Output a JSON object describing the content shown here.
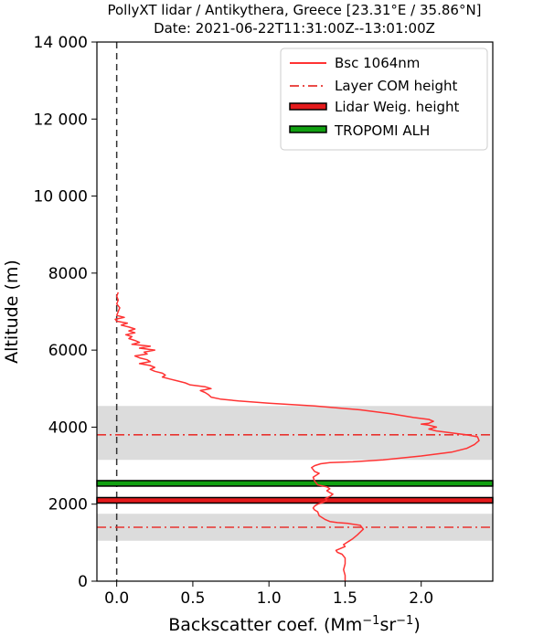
{
  "chart_data": {
    "type": "line",
    "title_line1": "PollyXT lidar / Antikythera, Greece [23.31°E / 35.86°N]",
    "title_line2": "Date: 2021-06-22T11:31:00Z--13:01:00Z",
    "xlabel_main": "Backscatter coef. (Mm",
    "xlabel_exp1": "−1",
    "xlabel_mid": "sr",
    "xlabel_exp2": "−1",
    "xlabel_end": ")",
    "ylabel": "Altitude (m)",
    "xlim": [
      -0.13,
      2.47
    ],
    "ylim": [
      0,
      14000
    ],
    "xticks": [
      0.0,
      0.5,
      1.0,
      1.5,
      2.0
    ],
    "xtick_labels": [
      "0.0",
      "0.5",
      "1.0",
      "1.5",
      "2.0"
    ],
    "yticks": [
      0,
      2000,
      4000,
      6000,
      8000,
      10000,
      12000,
      14000
    ],
    "ytick_labels": [
      "0",
      "2000",
      "4000",
      "6000",
      "8000",
      "10 000",
      "12 000",
      "14 000"
    ],
    "grid": false,
    "legend_position": "top-right",
    "legend": [
      {
        "label": "Bsc 1064nm",
        "style": "line"
      },
      {
        "label": "Layer COM height",
        "style": "dashdot"
      },
      {
        "label": "Lidar Weig. height",
        "style": "box-red"
      },
      {
        "label": "TROPOMI ALH",
        "style": "box-green"
      }
    ],
    "colors": {
      "bsc": "#ff3333",
      "com": "#e8332f",
      "lidar": "#e41a1c",
      "tropomi": "#11a011",
      "band": "#dcdcdc",
      "zero_line": "#333333"
    },
    "shaded_layers": [
      [
        3150,
        4550
      ],
      [
        1050,
        1750
      ]
    ],
    "layer_com_heights": [
      3800,
      1400
    ],
    "lidar_weighted_height": 2100,
    "tropomi_alh": 2540,
    "series": [
      {
        "name": "Bsc 1064nm",
        "points": [
          [
            1.5,
            0
          ],
          [
            1.5,
            150
          ],
          [
            1.49,
            300
          ],
          [
            1.5,
            450
          ],
          [
            1.5,
            600
          ],
          [
            1.48,
            700
          ],
          [
            1.45,
            750
          ],
          [
            1.44,
            800
          ],
          [
            1.47,
            850
          ],
          [
            1.5,
            900
          ],
          [
            1.49,
            950
          ],
          [
            1.51,
            1000
          ],
          [
            1.55,
            1100
          ],
          [
            1.58,
            1200
          ],
          [
            1.62,
            1350
          ],
          [
            1.6,
            1450
          ],
          [
            1.52,
            1500
          ],
          [
            1.45,
            1520
          ],
          [
            1.4,
            1550
          ],
          [
            1.37,
            1600
          ],
          [
            1.35,
            1650
          ],
          [
            1.33,
            1700
          ],
          [
            1.32,
            1800
          ],
          [
            1.3,
            1850
          ],
          [
            1.29,
            1900
          ],
          [
            1.3,
            1950
          ],
          [
            1.32,
            2000
          ],
          [
            1.36,
            2050
          ],
          [
            1.38,
            2100
          ],
          [
            1.37,
            2150
          ],
          [
            1.4,
            2200
          ],
          [
            1.42,
            2260
          ],
          [
            1.4,
            2300
          ],
          [
            1.38,
            2350
          ],
          [
            1.4,
            2400
          ],
          [
            1.38,
            2450
          ],
          [
            1.32,
            2500
          ],
          [
            1.3,
            2600
          ],
          [
            1.29,
            2700
          ],
          [
            1.31,
            2750
          ],
          [
            1.33,
            2800
          ],
          [
            1.3,
            2850
          ],
          [
            1.29,
            2900
          ],
          [
            1.28,
            2950
          ],
          [
            1.3,
            3000
          ],
          [
            1.34,
            3050
          ],
          [
            1.4,
            3080
          ],
          [
            1.55,
            3100
          ],
          [
            1.75,
            3150
          ],
          [
            2.0,
            3250
          ],
          [
            2.2,
            3350
          ],
          [
            2.3,
            3450
          ],
          [
            2.35,
            3550
          ],
          [
            2.38,
            3650
          ],
          [
            2.37,
            3750
          ],
          [
            2.3,
            3800
          ],
          [
            2.2,
            3850
          ],
          [
            2.1,
            3900
          ],
          [
            2.05,
            3950
          ],
          [
            2.1,
            4000
          ],
          [
            2.05,
            4050
          ],
          [
            2.0,
            4080
          ],
          [
            2.05,
            4100
          ],
          [
            2.08,
            4150
          ],
          [
            2.05,
            4200
          ],
          [
            1.95,
            4250
          ],
          [
            1.8,
            4350
          ],
          [
            1.6,
            4450
          ],
          [
            1.3,
            4550
          ],
          [
            1.0,
            4620
          ],
          [
            0.8,
            4680
          ],
          [
            0.68,
            4730
          ],
          [
            0.62,
            4780
          ],
          [
            0.6,
            4850
          ],
          [
            0.58,
            4900
          ],
          [
            0.55,
            4950
          ],
          [
            0.62,
            5000
          ],
          [
            0.58,
            5050
          ],
          [
            0.48,
            5100
          ],
          [
            0.45,
            5150
          ],
          [
            0.4,
            5200
          ],
          [
            0.35,
            5250
          ],
          [
            0.3,
            5300
          ],
          [
            0.32,
            5350
          ],
          [
            0.3,
            5400
          ],
          [
            0.25,
            5450
          ],
          [
            0.22,
            5500
          ],
          [
            0.25,
            5550
          ],
          [
            0.22,
            5600
          ],
          [
            0.15,
            5650
          ],
          [
            0.22,
            5700
          ],
          [
            0.2,
            5750
          ],
          [
            0.15,
            5800
          ],
          [
            0.12,
            5850
          ],
          [
            0.2,
            5900
          ],
          [
            0.18,
            5950
          ],
          [
            0.25,
            6000
          ],
          [
            0.15,
            6050
          ],
          [
            0.22,
            6100
          ],
          [
            0.1,
            6150
          ],
          [
            0.15,
            6200
          ],
          [
            0.12,
            6250
          ],
          [
            0.08,
            6300
          ],
          [
            0.1,
            6350
          ],
          [
            0.06,
            6400
          ],
          [
            0.12,
            6450
          ],
          [
            0.08,
            6500
          ],
          [
            0.12,
            6550
          ],
          [
            0.08,
            6600
          ],
          [
            0.03,
            6650
          ],
          [
            0.07,
            6700
          ],
          [
            0.0,
            6750
          ],
          [
            -0.01,
            6800
          ],
          [
            0.05,
            6850
          ],
          [
            0.0,
            6900
          ],
          [
            0.01,
            7000
          ],
          [
            0.02,
            7100
          ],
          [
            0.0,
            7200
          ],
          [
            0.01,
            7300
          ],
          [
            0.0,
            7400
          ],
          [
            0.01,
            7500
          ]
        ]
      }
    ]
  }
}
